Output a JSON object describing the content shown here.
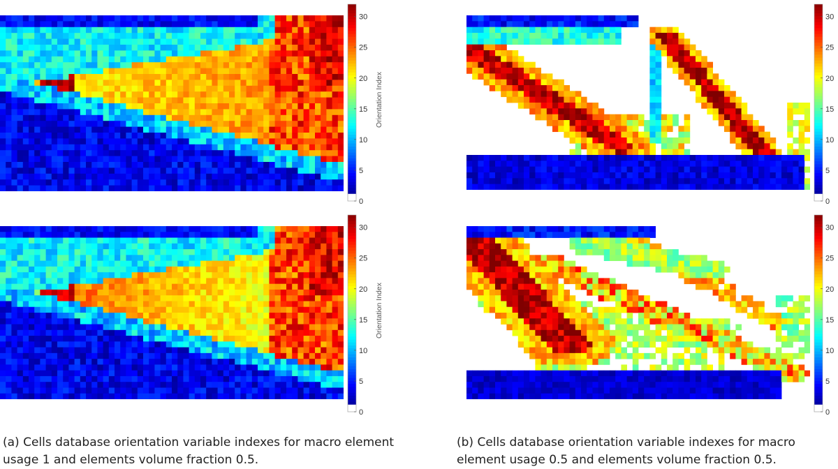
{
  "colormap": "jet",
  "colors": {
    "empty": "#ffffff",
    "zero_swatch": "#ffffff",
    "text": "#222222"
  },
  "captions": {
    "a": {
      "line1": "(a) Cells database orientation variable indexes for macro element",
      "line2": "usage 1 and elements volume fraction 0.5."
    },
    "b": {
      "line1": "(b) Cells database orientation variable indexes for macro",
      "line2": "element usage 0.5 and elements volume fraction 0.5."
    }
  },
  "chart_data": [
    {
      "id": "a-top",
      "type": "heatmap",
      "colorbar": {
        "range": [
          0,
          32
        ],
        "ticks": [
          "0",
          "5",
          "10",
          "15",
          "20",
          "25",
          "30"
        ],
        "label": "Orientation Index"
      },
      "macro_element_usage": 1,
      "volume_fraction": 0.5
    },
    {
      "id": "a-bottom",
      "type": "heatmap",
      "colorbar": {
        "range": [
          0,
          32
        ],
        "ticks": [
          "0",
          "5",
          "10",
          "15",
          "20",
          "25",
          "30"
        ],
        "label": "Orientation Index"
      },
      "macro_element_usage": 1,
      "volume_fraction": 0.5
    },
    {
      "id": "b-top",
      "type": "heatmap",
      "colorbar": {
        "range": [
          0,
          32
        ],
        "ticks": [
          "0",
          "5",
          "10",
          "15",
          "20",
          "25",
          "30"
        ],
        "label": ""
      },
      "macro_element_usage": 0.5,
      "volume_fraction": 0.5
    },
    {
      "id": "b-bottom",
      "type": "heatmap",
      "colorbar": {
        "range": [
          0,
          32
        ],
        "ticks": [
          "0",
          "5",
          "10",
          "15",
          "20",
          "25",
          "30"
        ],
        "label": ""
      },
      "macro_element_usage": 0.5,
      "volume_fraction": 0.5
    }
  ]
}
